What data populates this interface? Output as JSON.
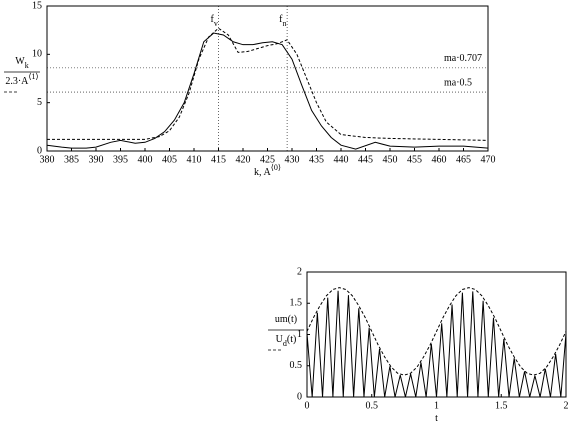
{
  "chart_data": [
    {
      "type": "line",
      "xlim": [
        380,
        470
      ],
      "ylim": [
        0,
        15
      ],
      "xticks": [
        380,
        385,
        390,
        395,
        400,
        405,
        410,
        415,
        420,
        425,
        430,
        435,
        440,
        445,
        450,
        455,
        460,
        465,
        470
      ],
      "yticks": [
        0,
        5,
        10,
        15
      ],
      "xlabel": [
        {
          "text": "k, A"
        },
        {
          "text": "⟨0⟩",
          "shift": "super"
        }
      ],
      "series": [
        {
          "name": [
            {
              "text": "W"
            },
            {
              "text": "k",
              "shift": "sub"
            }
          ],
          "color": "#000000",
          "dash": false,
          "x": [
            380,
            383,
            385,
            388,
            390,
            393,
            395,
            398,
            400,
            402,
            404,
            406,
            408,
            410,
            412,
            414,
            416,
            418,
            420,
            422,
            424,
            426,
            428,
            430,
            432,
            434,
            436,
            438,
            440,
            443,
            447,
            450,
            455,
            460,
            465,
            470
          ],
          "values": [
            0.6,
            0.4,
            0.3,
            0.3,
            0.4,
            0.9,
            1.1,
            0.8,
            0.9,
            1.3,
            2.0,
            3.2,
            5.0,
            8.0,
            11.3,
            12.2,
            12.0,
            11.3,
            11.0,
            11.0,
            11.2,
            11.3,
            11.0,
            9.5,
            6.8,
            4.2,
            2.6,
            1.4,
            0.6,
            0.2,
            0.9,
            0.5,
            0.4,
            0.5,
            0.5,
            0.3
          ]
        },
        {
          "name": [
            {
              "text": "2.3·A"
            },
            {
              "text": "⟨1⟩",
              "shift": "super"
            }
          ],
          "color": "#000000",
          "dash": true,
          "x": [
            380,
            390,
            395,
            400,
            403,
            405,
            407,
            409,
            411,
            413,
            415,
            417,
            419,
            421,
            423,
            425,
            427,
            429,
            431,
            433,
            435,
            437,
            440,
            445,
            450,
            460,
            470
          ],
          "values": [
            1.2,
            1.2,
            1.2,
            1.2,
            1.5,
            2.1,
            3.5,
            6.0,
            9.5,
            11.8,
            12.7,
            12.0,
            10.2,
            10.3,
            10.6,
            10.9,
            11.1,
            11.5,
            10.0,
            7.5,
            5.0,
            3.0,
            1.7,
            1.4,
            1.3,
            1.2,
            1.1
          ]
        }
      ],
      "hlines": [
        {
          "value": 8.6,
          "label": "ma·0.707"
        },
        {
          "value": 6.1,
          "label": "ma·0.5"
        }
      ],
      "vlines": [
        {
          "value": 415,
          "label": [
            {
              "text": "f"
            },
            {
              "text": "v",
              "shift": "sub"
            }
          ]
        },
        {
          "value": 429,
          "label": [
            {
              "text": "f"
            },
            {
              "text": "n",
              "shift": "sub"
            }
          ]
        }
      ]
    },
    {
      "type": "line",
      "xlim": [
        0,
        2
      ],
      "ylim": [
        0,
        2
      ],
      "xticks": [
        0,
        0.5,
        1,
        1.5,
        2
      ],
      "yticks": [
        0,
        0.5,
        1,
        1.5,
        2
      ],
      "xlabel": [
        {
          "text": "t"
        }
      ],
      "series": [
        {
          "name": [
            {
              "text": "um(t)"
            }
          ],
          "color": "#000000",
          "dash": false,
          "x": [
            0,
            0.04,
            0.08,
            0.12,
            0.16,
            0.2,
            0.24,
            0.28,
            0.32,
            0.36,
            0.4,
            0.44,
            0.48,
            0.52,
            0.56,
            0.6,
            0.64,
            0.68,
            0.72,
            0.76,
            0.8,
            0.84,
            0.88,
            0.92,
            0.96,
            1,
            1.04,
            1.08,
            1.12,
            1.16,
            1.2,
            1.24,
            1.28,
            1.32,
            1.36,
            1.4,
            1.44,
            1.48,
            1.52,
            1.56,
            1.6,
            1.64,
            1.68,
            1.72,
            1.76,
            1.8,
            1.84,
            1.88,
            1.92,
            1.96,
            2
          ],
          "values": [
            1.02,
            0,
            1.35,
            0,
            1.59,
            0,
            1.7,
            0,
            1.63,
            0,
            1.42,
            0,
            1.11,
            0,
            0.77,
            0,
            0.49,
            0,
            0.35,
            0,
            0.37,
            0,
            0.55,
            0,
            0.85,
            0,
            1.18,
            0,
            1.48,
            0,
            1.67,
            0,
            1.69,
            0,
            1.54,
            0,
            1.27,
            0,
            0.93,
            0,
            0.62,
            0,
            0.41,
            0,
            0.34,
            0,
            0.45,
            0,
            0.69,
            0,
            1.02
          ]
        },
        {
          "name": [
            {
              "text": "U"
            },
            {
              "text": "d",
              "shift": "sub"
            },
            {
              "text": "(t)"
            }
          ],
          "color": "#000000",
          "dash": true,
          "x": [
            0,
            0.05,
            0.1,
            0.15,
            0.2,
            0.25,
            0.3,
            0.35,
            0.4,
            0.45,
            0.5,
            0.55,
            0.6,
            0.65,
            0.7,
            0.75,
            0.8,
            0.85,
            0.9,
            0.95,
            1,
            1.05,
            1.1,
            1.15,
            1.2,
            1.25,
            1.3,
            1.35,
            1.4,
            1.45,
            1.5,
            1.55,
            1.6,
            1.65,
            1.7,
            1.75,
            1.8,
            1.85,
            1.9,
            1.95,
            2
          ],
          "values": [
            1.05,
            1.27,
            1.46,
            1.62,
            1.72,
            1.75,
            1.72,
            1.62,
            1.46,
            1.27,
            1.05,
            0.83,
            0.64,
            0.48,
            0.38,
            0.35,
            0.38,
            0.48,
            0.64,
            0.83,
            1.05,
            1.27,
            1.46,
            1.62,
            1.72,
            1.75,
            1.72,
            1.62,
            1.46,
            1.27,
            1.05,
            0.83,
            0.64,
            0.48,
            0.38,
            0.35,
            0.38,
            0.48,
            0.64,
            0.83,
            1.05
          ]
        }
      ],
      "hlines": [],
      "vlines": []
    }
  ]
}
